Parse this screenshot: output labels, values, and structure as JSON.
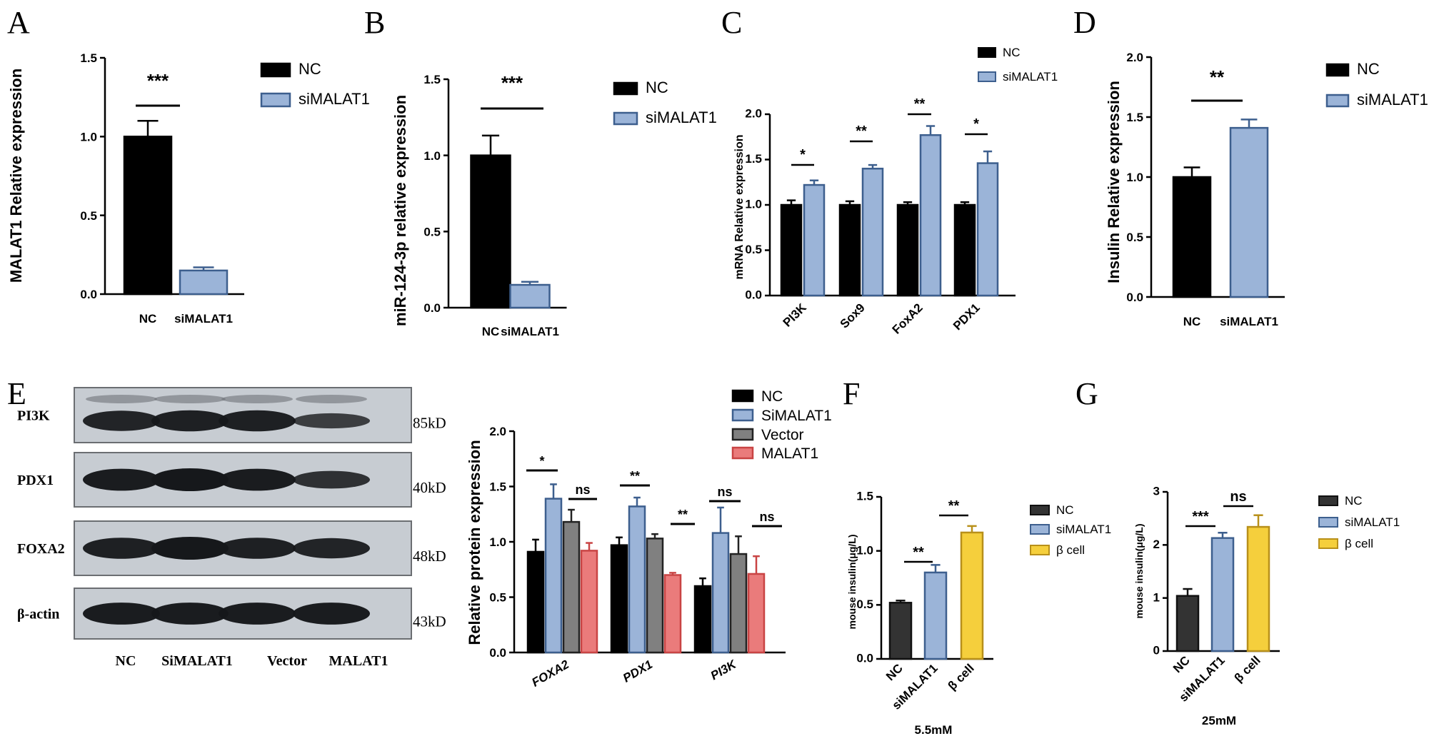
{
  "colors": {
    "NC": "#000000",
    "siMALAT1": "#9bb4d8",
    "siMALAT1_edge": "#3d5f8e",
    "Vector": "#808080",
    "MALAT1": "#ea7b7b",
    "beta_cell": "#f5cf3c",
    "NC_dark": "#333333"
  },
  "panels": {
    "A": "A",
    "B": "B",
    "C": "C",
    "D": "D",
    "E": "E",
    "F": "F",
    "G": "G"
  },
  "blot": {
    "rows": [
      {
        "label": "PI3K",
        "kd": "85kD"
      },
      {
        "label": "PDX1",
        "kd": "40kD"
      },
      {
        "label": "FOXA2",
        "kd": "48kD"
      },
      {
        "label": "β-actin",
        "kd": "43kD"
      }
    ],
    "lanes": [
      "NC",
      "SiMALAT1",
      "Vector",
      "MALAT1"
    ]
  },
  "chart_data": [
    {
      "id": "A",
      "type": "bar",
      "ylabel": "MALAT1 Relative expression",
      "categories": [
        "NC",
        "siMALAT1"
      ],
      "values": [
        1.0,
        0.15
      ],
      "errors": [
        0.1,
        0.02
      ],
      "yticks": [
        "0.0",
        "0.5",
        "1.0",
        "1.5"
      ],
      "ylim": [
        0,
        1.5
      ],
      "legend": [
        "NC",
        "siMALAT1"
      ],
      "significance": [
        {
          "label": "***"
        }
      ]
    },
    {
      "id": "B",
      "type": "bar",
      "ylabel": "miR-124-3p relative expression",
      "categories": [
        "NC",
        "siMALAT1"
      ],
      "values": [
        1.0,
        0.15
      ],
      "errors": [
        0.13,
        0.02
      ],
      "yticks": [
        "0.0",
        "0.5",
        "1.0",
        "1.5"
      ],
      "ylim": [
        0,
        1.5
      ],
      "legend": [
        "NC",
        "siMALAT1"
      ],
      "significance": [
        {
          "label": "***"
        }
      ]
    },
    {
      "id": "C",
      "type": "bar",
      "ylabel": "mRNA Relative expression",
      "categories": [
        "PI3K",
        "Sox9",
        "FoxA2",
        "PDX1"
      ],
      "series": [
        {
          "name": "NC",
          "values": [
            1.0,
            1.0,
            1.0,
            1.0
          ],
          "errors": [
            0.05,
            0.04,
            0.03,
            0.03
          ]
        },
        {
          "name": "siMALAT1",
          "values": [
            1.22,
            1.4,
            1.77,
            1.46
          ],
          "errors": [
            0.05,
            0.04,
            0.1,
            0.13
          ]
        }
      ],
      "yticks": [
        "0.0",
        "0.5",
        "1.0",
        "1.5",
        "2.0"
      ],
      "ylim": [
        0,
        2.0
      ],
      "legend": [
        "NC",
        "siMALAT1"
      ],
      "significance": [
        {
          "label": "*"
        },
        {
          "label": "**"
        },
        {
          "label": "**"
        },
        {
          "label": "*"
        }
      ]
    },
    {
      "id": "D",
      "type": "bar",
      "ylabel": "Insulin Relative expression",
      "categories": [
        "NC",
        "siMALAT1"
      ],
      "values": [
        1.0,
        1.41
      ],
      "errors": [
        0.08,
        0.07
      ],
      "yticks": [
        "0.0",
        "0.5",
        "1.0",
        "1.5",
        "2.0"
      ],
      "ylim": [
        0,
        2.0
      ],
      "legend": [
        "NC",
        "siMALAT1"
      ],
      "significance": [
        {
          "label": "**"
        }
      ]
    },
    {
      "id": "E",
      "type": "bar",
      "ylabel": "Relative protein expression",
      "categories": [
        "FOXA2",
        "PDX1",
        "PI3K"
      ],
      "series": [
        {
          "name": "NC",
          "values": [
            0.91,
            0.97,
            0.6
          ],
          "errors": [
            0.11,
            0.07,
            0.07
          ]
        },
        {
          "name": "SiMALAT1",
          "values": [
            1.39,
            1.32,
            1.08
          ],
          "errors": [
            0.13,
            0.08,
            0.23
          ]
        },
        {
          "name": "Vector",
          "values": [
            1.18,
            1.03,
            0.89
          ],
          "errors": [
            0.11,
            0.04,
            0.16
          ]
        },
        {
          "name": "MALAT1",
          "values": [
            0.92,
            0.7,
            0.71
          ],
          "errors": [
            0.07,
            0.02,
            0.16
          ]
        }
      ],
      "yticks": [
        "0.0",
        "0.5",
        "1.0",
        "1.5",
        "2.0"
      ],
      "ylim": [
        0,
        2.0
      ],
      "legend": [
        "NC",
        "SiMALAT1",
        "Vector",
        "MALAT1"
      ],
      "significance": [
        {
          "label": "*"
        },
        {
          "label": "ns"
        },
        {
          "label": "**"
        },
        {
          "label": "**"
        },
        {
          "label": "ns"
        },
        {
          "label": "ns"
        }
      ]
    },
    {
      "id": "F",
      "type": "bar",
      "ylabel": "mouse insulin(μg/L)",
      "xlabel": "5.5mM",
      "categories": [
        "NC",
        "siMALAT1",
        "β cell"
      ],
      "values": [
        0.52,
        0.8,
        1.17
      ],
      "errors": [
        0.02,
        0.07,
        0.06
      ],
      "yticks": [
        "0.0",
        "0.5",
        "1.0",
        "1.5"
      ],
      "ylim": [
        0,
        1.5
      ],
      "legend": [
        "NC",
        "siMALAT1",
        "β cell"
      ],
      "significance": [
        {
          "label": "**"
        },
        {
          "label": "**"
        }
      ]
    },
    {
      "id": "G",
      "type": "bar",
      "ylabel": "mouse insulin(μg/L)",
      "xlabel": "25mM",
      "categories": [
        "NC",
        "siMALAT1",
        "β cell"
      ],
      "values": [
        1.04,
        2.13,
        2.34
      ],
      "errors": [
        0.13,
        0.1,
        0.22
      ],
      "yticks": [
        "0",
        "1",
        "2",
        "3"
      ],
      "ylim": [
        0,
        3
      ],
      "legend": [
        "NC",
        "siMALAT1",
        "β cell"
      ],
      "significance": [
        {
          "label": "***"
        },
        {
          "label": "ns"
        }
      ]
    }
  ]
}
